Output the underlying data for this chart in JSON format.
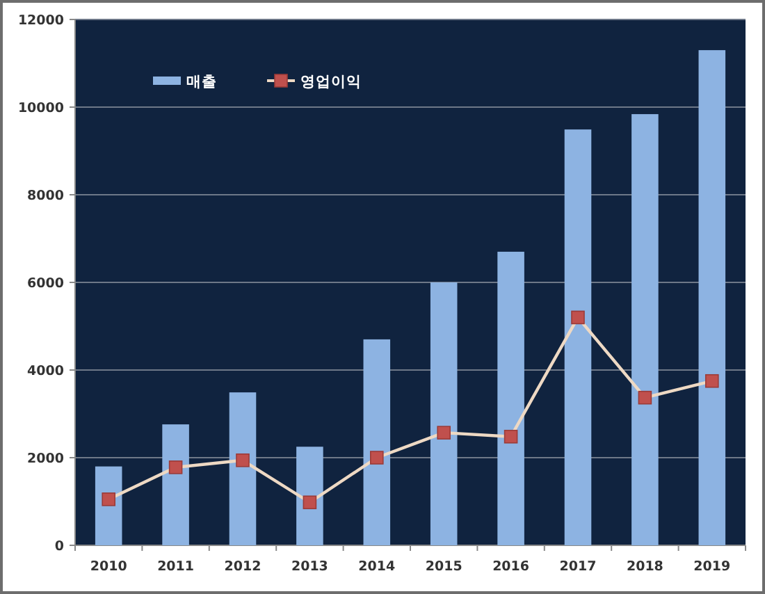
{
  "chart_data": {
    "type": "bar",
    "categories": [
      "2010",
      "2011",
      "2012",
      "2013",
      "2014",
      "2015",
      "2016",
      "2017",
      "2018",
      "2019"
    ],
    "series": [
      {
        "name": "매출",
        "color": "#8db3e2",
        "values": [
          1800,
          2760,
          3490,
          2250,
          4700,
          6000,
          6700,
          9490,
          9840,
          11300
        ]
      },
      {
        "name": "영업이익",
        "type": "line",
        "color": "#eed9c4",
        "colors": [
          "#c0504d",
          "#c0504d",
          "#c0504d",
          "#c0504d",
          "#c0504d",
          "#c0504d",
          "#c0504d",
          "#c0504d",
          "#c0504d",
          "#c0504d"
        ],
        "marker": "square",
        "values": [
          1050,
          1780,
          1940,
          980,
          2000,
          2570,
          2480,
          5200,
          3370,
          3750
        ]
      }
    ],
    "ylim": [
      0,
      12000
    ],
    "yticks": [
      0,
      2000,
      4000,
      6000,
      8000,
      10000,
      12000
    ],
    "grid": "y",
    "legend": "top left"
  }
}
